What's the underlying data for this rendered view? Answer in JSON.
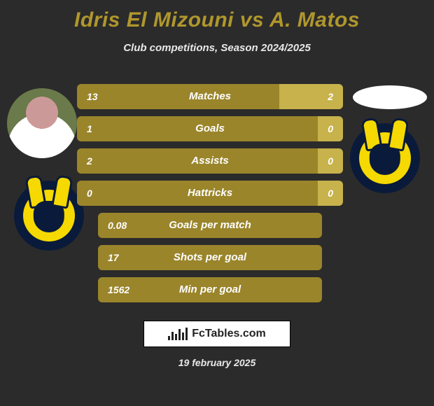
{
  "title": {
    "player1": "Idris El Mizouni",
    "vs": "vs",
    "player2": "A. Matos",
    "color": "#b0972c"
  },
  "subtitle": "Club competitions, Season 2024/2025",
  "date": "19 february 2025",
  "branding": {
    "text": "FcTables.com"
  },
  "colors": {
    "player1_bar": "#9a852b",
    "player2_bar": "#c7b24b",
    "background": "#2b2b2b",
    "text": "#ffffff"
  },
  "layout": {
    "widthPx": 620,
    "heightPx": 580,
    "stats_leftPx": 110,
    "stats_topPx": 120,
    "stats_widthPx": 380,
    "row_heightPx": 36,
    "row_gapPx": 10,
    "font_family": "Arial",
    "value_fontsizePx": 14,
    "label_fontsizePx": 15,
    "title_fontsizePx": 30,
    "subtitle_fontsizePx": 15,
    "font_style": "italic",
    "font_weight": 700
  },
  "stats": [
    {
      "label": "Matches",
      "p1": "13",
      "p2": "2",
      "p1_pct": 76,
      "p2_pct": 24,
      "single": false
    },
    {
      "label": "Goals",
      "p1": "1",
      "p2": "0",
      "p1_pct": 92,
      "p2_pct": 8,
      "single": false
    },
    {
      "label": "Assists",
      "p1": "2",
      "p2": "0",
      "p1_pct": 92,
      "p2_pct": 8,
      "single": false
    },
    {
      "label": "Hattricks",
      "p1": "0",
      "p2": "0",
      "p1_pct": 92,
      "p2_pct": 8,
      "single": false
    },
    {
      "label": "Goals per match",
      "p1": "0.08",
      "p2": "",
      "p1_pct": 100,
      "p2_pct": 0,
      "single": true,
      "indentPx": 30
    },
    {
      "label": "Shots per goal",
      "p1": "17",
      "p2": "",
      "p1_pct": 100,
      "p2_pct": 0,
      "single": true,
      "indentPx": 30
    },
    {
      "label": "Min per goal",
      "p1": "1562",
      "p2": "",
      "p1_pct": 100,
      "p2_pct": 0,
      "single": true,
      "indentPx": 30
    }
  ]
}
